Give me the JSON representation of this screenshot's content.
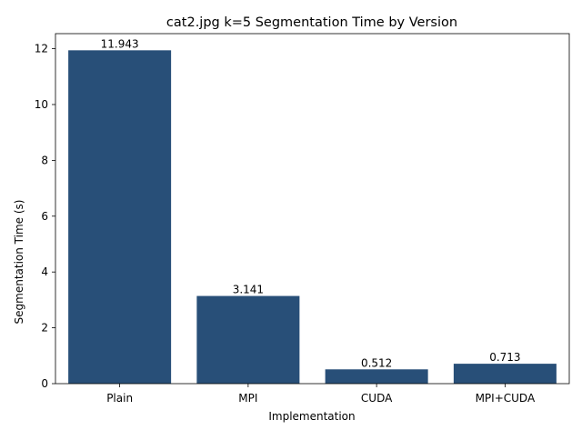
{
  "chart_data": {
    "type": "bar",
    "title": "cat2.jpg k=5 Segmentation Time by Version",
    "xlabel": "Implementation",
    "ylabel": "Segmentation Time (s)",
    "categories": [
      "Plain",
      "MPI",
      "CUDA",
      "MPI+CUDA"
    ],
    "values": [
      11.943,
      3.141,
      0.512,
      0.713
    ],
    "value_labels": [
      "11.943",
      "3.141",
      "0.512",
      "0.713"
    ],
    "ylim": [
      0,
      12.54
    ],
    "yticks": [
      0,
      2,
      4,
      6,
      8,
      10,
      12
    ],
    "grid": false,
    "legend": "none",
    "bar_color": "#284f78",
    "axis_color": "#000000"
  }
}
